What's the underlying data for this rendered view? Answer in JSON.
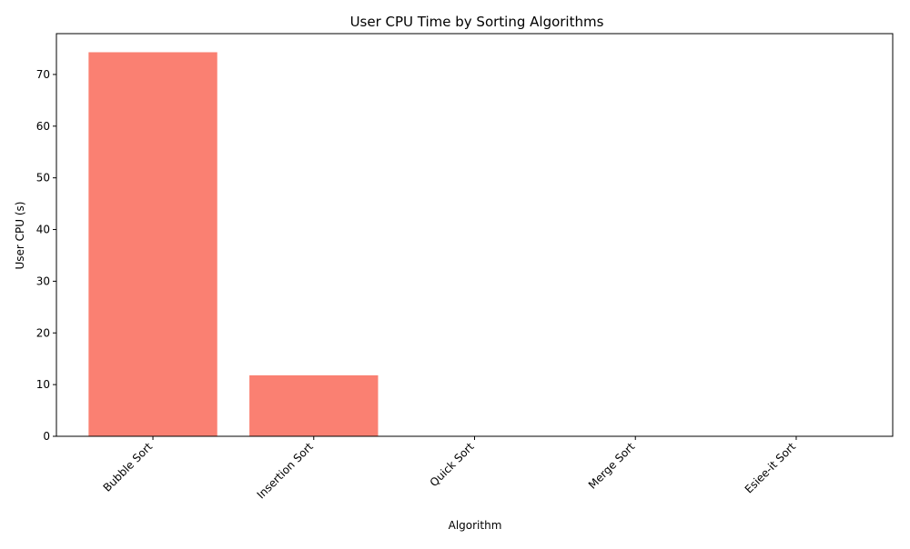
{
  "chart_data": {
    "type": "bar",
    "title": "User CPU Time by Sorting Algorithms",
    "xlabel": "Algorithm",
    "ylabel": "User CPU (s)",
    "categories": [
      "Bubble Sort",
      "Insertion Sort",
      "Quick Sort",
      "Merge Sort",
      "Esiee-it Sort"
    ],
    "values": [
      74.3,
      11.8,
      0.08,
      0.03,
      0.02
    ],
    "ylim": [
      0,
      77.9
    ],
    "yticks": [
      0,
      10,
      20,
      30,
      40,
      50,
      60,
      70
    ],
    "bar_color": "#fa8072",
    "grid": false,
    "legend": "none",
    "xtick_rotation": "45 degrees"
  }
}
